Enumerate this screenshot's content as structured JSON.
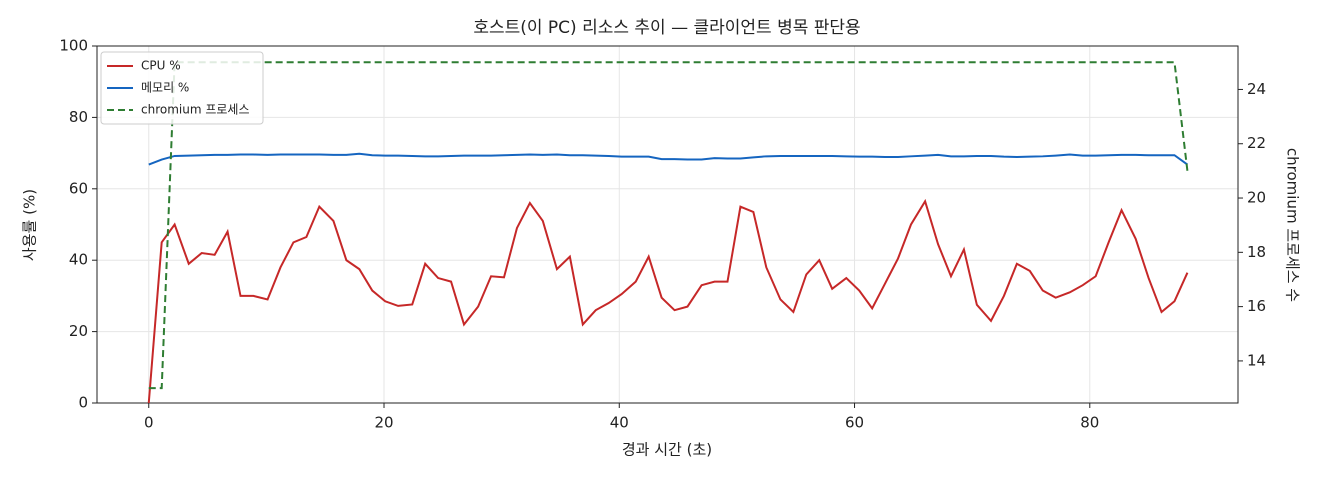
{
  "chart_data": {
    "type": "line",
    "title": "호스트(이 PC) 리소스 추이 — 클라이언트 병목 판단용",
    "xlabel": "경과 시간 (초)",
    "ylabel": "사용률 (%)",
    "y2label": "chromium 프로세스 수",
    "x": [
      0,
      1.1,
      2.2,
      3.4,
      4.5,
      5.6,
      6.7,
      7.8,
      8.9,
      10.1,
      11.2,
      12.3,
      13.4,
      14.5,
      15.7,
      16.8,
      17.9,
      19.0,
      20.1,
      21.2,
      22.4,
      23.5,
      24.6,
      25.7,
      26.8,
      28.0,
      29.1,
      30.2,
      31.3,
      32.4,
      33.5,
      34.7,
      35.8,
      36.9,
      38.0,
      39.1,
      40.2,
      41.4,
      42.5,
      43.6,
      44.7,
      45.8,
      47.0,
      48.1,
      49.2,
      50.3,
      51.4,
      52.5,
      53.7,
      54.8,
      55.9,
      57.0,
      58.1,
      59.3,
      60.4,
      61.5,
      62.6,
      63.7,
      64.8,
      66.0,
      67.1,
      68.2,
      69.3,
      70.4,
      71.6,
      72.7,
      73.8,
      74.9,
      76.0,
      77.1,
      78.3,
      79.4,
      80.5,
      81.6,
      82.7,
      83.9,
      85.0,
      86.1,
      87.2,
      88.3
    ],
    "series": [
      {
        "name": "CPU %",
        "color": "#c62828",
        "values": [
          0,
          45,
          50,
          39,
          42,
          41.5,
          48,
          30,
          30,
          29,
          38,
          45,
          46.5,
          55,
          51,
          40,
          37.5,
          31.5,
          28.5,
          27.2,
          27.6,
          39,
          35,
          34,
          22,
          27,
          35.5,
          35.2,
          49,
          56,
          51,
          37.5,
          41,
          22,
          26,
          28,
          30.5,
          34,
          41,
          29.5,
          26,
          27,
          33,
          34,
          34,
          55,
          53.5,
          38,
          29,
          25.5,
          36,
          40,
          32,
          35,
          31.5,
          26.5,
          33.5,
          40.5,
          50,
          56.5,
          44.5,
          35.5,
          43,
          27.5,
          23,
          30,
          39,
          37,
          31.5,
          29.5,
          31,
          33,
          35.5,
          45,
          54,
          46,
          35,
          25.5,
          28.5,
          36.5
        ]
      },
      {
        "name": "메모리 %",
        "color": "#1565c0",
        "values": [
          66.8,
          68.2,
          69.2,
          69.3,
          69.4,
          69.5,
          69.5,
          69.6,
          69.6,
          69.5,
          69.6,
          69.6,
          69.6,
          69.6,
          69.5,
          69.5,
          69.8,
          69.4,
          69.3,
          69.3,
          69.2,
          69.1,
          69.1,
          69.2,
          69.3,
          69.3,
          69.3,
          69.4,
          69.5,
          69.6,
          69.5,
          69.6,
          69.4,
          69.4,
          69.3,
          69.2,
          69.0,
          69.0,
          69.0,
          68.3,
          68.3,
          68.2,
          68.2,
          68.6,
          68.5,
          68.5,
          68.8,
          69.1,
          69.2,
          69.2,
          69.2,
          69.2,
          69.2,
          69.1,
          69.0,
          69.0,
          68.9,
          68.9,
          69.1,
          69.3,
          69.5,
          69.1,
          69.1,
          69.2,
          69.2,
          69.0,
          68.9,
          69.0,
          69.1,
          69.3,
          69.6,
          69.3,
          69.3,
          69.4,
          69.5,
          69.5,
          69.4,
          69.4,
          69.4,
          66.8
        ]
      },
      {
        "name": "chromium 프로세스",
        "color": "#2e7d32",
        "axis": "y2",
        "linestyle": "dashed",
        "values": [
          13,
          13,
          25,
          25,
          25,
          25,
          25,
          25,
          25,
          25,
          25,
          25,
          25,
          25,
          25,
          25,
          25,
          25,
          25,
          25,
          25,
          25,
          25,
          25,
          25,
          25,
          25,
          25,
          25,
          25,
          25,
          25,
          25,
          25,
          25,
          25,
          25,
          25,
          25,
          25,
          25,
          25,
          25,
          25,
          25,
          25,
          25,
          25,
          25,
          25,
          25,
          25,
          25,
          25,
          25,
          25,
          25,
          25,
          25,
          25,
          25,
          25,
          25,
          25,
          25,
          25,
          25,
          25,
          25,
          25,
          25,
          25,
          25,
          25,
          25,
          25,
          25,
          25,
          25,
          21
        ]
      }
    ],
    "xlim": [
      -4.4,
      92.6
    ],
    "xticks": [
      0,
      20,
      40,
      60,
      80
    ],
    "ylim": [
      0,
      100
    ],
    "yticks": [
      0,
      20,
      40,
      60,
      80,
      100
    ],
    "y2lim": [
      12.45,
      25.6
    ],
    "y2ticks": [
      14,
      16,
      18,
      20,
      22,
      24
    ],
    "grid": true,
    "legend": "upper left"
  }
}
